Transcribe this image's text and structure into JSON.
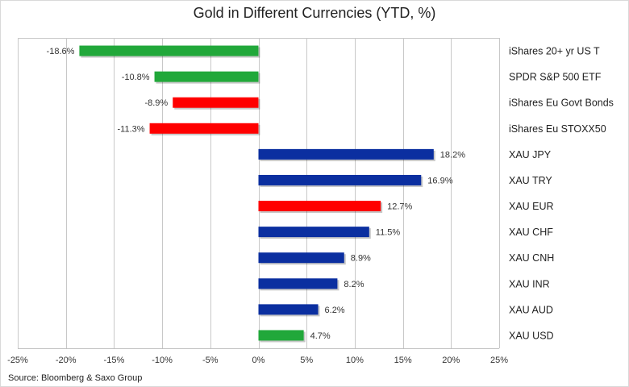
{
  "chart_data": {
    "type": "bar",
    "orientation": "horizontal",
    "title": "Gold in Different Currencies (YTD, %)",
    "source": "Source: Bloomberg & Saxo Group",
    "categories": [
      "iShares 20+ yr US T",
      "SPDR S&P 500 ETF",
      "iShares Eu Govt Bonds",
      "iShares Eu STOXX50",
      "XAU JPY",
      "XAU TRY",
      "XAU EUR",
      "XAU CHF",
      "XAU CNH",
      "XAU INR",
      "XAU AUD",
      "XAU USD"
    ],
    "values": [
      -18.6,
      -10.8,
      -8.9,
      -11.3,
      18.2,
      16.9,
      12.7,
      11.5,
      8.9,
      8.2,
      6.2,
      4.7
    ],
    "value_labels": [
      "-18.6%",
      "-10.8%",
      "-8.9%",
      "-11.3%",
      "18.2%",
      "16.9%",
      "12.7%",
      "11.5%",
      "8.9%",
      "8.2%",
      "6.2%",
      "4.7%"
    ],
    "bar_colors": [
      "#21a83a",
      "#21a83a",
      "#ff0000",
      "#ff0000",
      "#0b2fa0",
      "#0b2fa0",
      "#ff0000",
      "#0b2fa0",
      "#0b2fa0",
      "#0b2fa0",
      "#0b2fa0",
      "#21a83a"
    ],
    "xlim": [
      -25,
      25
    ],
    "xticks": [
      -25,
      -20,
      -15,
      -10,
      -5,
      0,
      5,
      10,
      15,
      20,
      25
    ],
    "xtick_labels": [
      "-25%",
      "-20%",
      "-15%",
      "-10%",
      "-5%",
      "0%",
      "5%",
      "10%",
      "15%",
      "20%",
      "25%"
    ],
    "grid": "vertical",
    "legend": "none"
  }
}
